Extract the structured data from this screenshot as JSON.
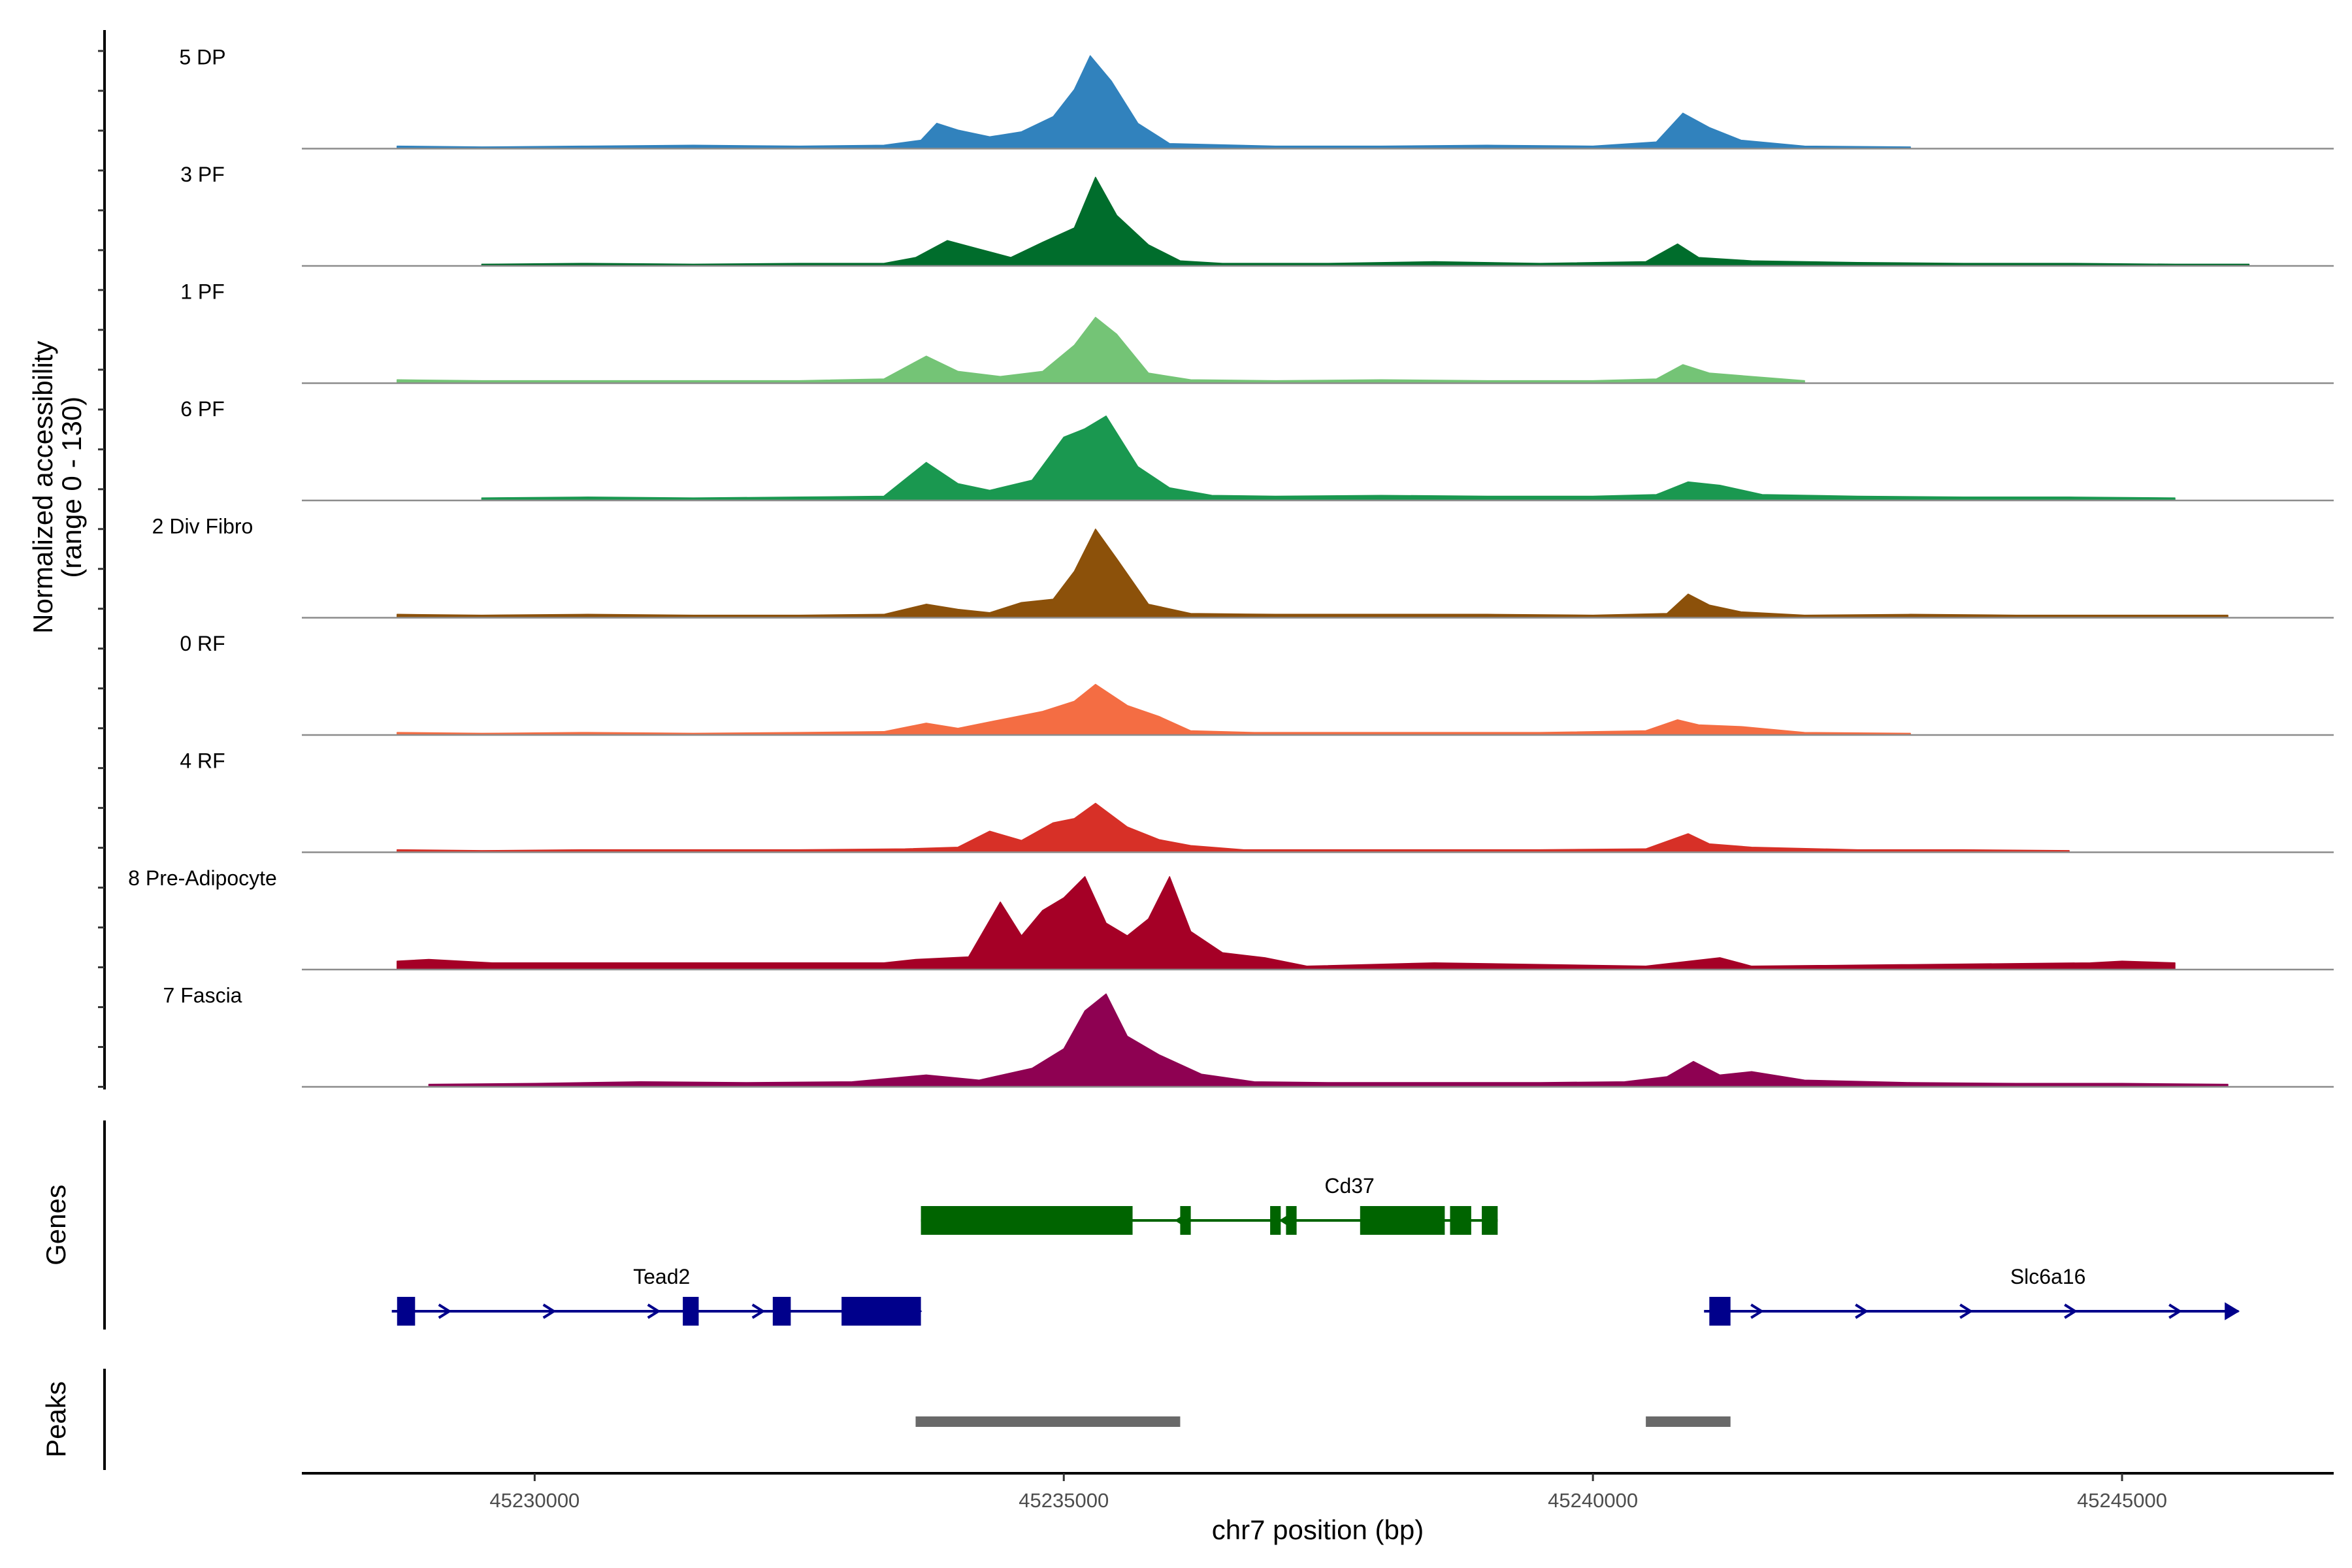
{
  "chart_data": {
    "type": "area",
    "title": "",
    "ylabel": "Normalized accessibility\n(range 0 - 130)",
    "ylabel_lines": [
      "Normalized accessibility",
      "(range 0 - 130)"
    ],
    "ylim": [
      0,
      130
    ],
    "xlabel": "chr7 position (bp)",
    "xlim": [
      45227800,
      45247000
    ],
    "x_ticks": [
      45230000,
      45235000,
      45240000,
      45245000
    ],
    "x_tick_labels": [
      "45230000",
      "45235000",
      "45240000",
      "45245000"
    ],
    "series": [
      {
        "name": "5 DP",
        "color": "#3182BD",
        "x": [
          45228700,
          45229500,
          45230500,
          45231500,
          45232500,
          45233300,
          45233650,
          45233800,
          45234000,
          45234300,
          45234600,
          45234900,
          45235100,
          45235250,
          45235450,
          45235700,
          45236000,
          45237000,
          45238000,
          45239000,
          45240000,
          45240600,
          45240850,
          45241100,
          45241400,
          45242000,
          45243000
        ],
        "values": [
          3,
          2,
          3,
          4,
          3,
          4,
          10,
          30,
          22,
          14,
          20,
          38,
          70,
          110,
          80,
          30,
          6,
          3,
          3,
          4,
          3,
          8,
          42,
          25,
          10,
          3,
          2
        ]
      },
      {
        "name": "3 PF",
        "color": "#006D2C",
        "x": [
          45229500,
          45230500,
          45231500,
          45232500,
          45233300,
          45233600,
          45233900,
          45234200,
          45234500,
          45234800,
          45235100,
          45235300,
          45235500,
          45235800,
          45236100,
          45236500,
          45237500,
          45238500,
          45239500,
          45240500,
          45240800,
          45241000,
          45241500,
          45242500,
          45243500,
          45244500,
          45245500,
          45246200
        ],
        "values": [
          2,
          3,
          2,
          3,
          3,
          10,
          30,
          20,
          10,
          28,
          45,
          105,
          60,
          25,
          6,
          3,
          3,
          5,
          3,
          5,
          26,
          10,
          6,
          4,
          3,
          3,
          2,
          2
        ]
      },
      {
        "name": "1 PF",
        "color": "#74C476",
        "x": [
          45228700,
          45229500,
          45230500,
          45231500,
          45232500,
          45233300,
          45233700,
          45234000,
          45234400,
          45234800,
          45235100,
          45235300,
          45235500,
          45235800,
          45236200,
          45237000,
          45238000,
          45239000,
          45240000,
          45240600,
          45240850,
          45241100,
          45241500,
          45242000
        ],
        "values": [
          4,
          3,
          3,
          3,
          3,
          5,
          32,
          14,
          8,
          14,
          45,
          78,
          58,
          12,
          4,
          3,
          4,
          3,
          3,
          5,
          22,
          12,
          8,
          3
        ]
      },
      {
        "name": "6 PF",
        "color": "#1A9850",
        "x": [
          45229500,
          45230500,
          45231500,
          45232500,
          45233300,
          45233700,
          45234000,
          45234300,
          45234700,
          45235000,
          45235200,
          45235400,
          45235700,
          45236000,
          45236400,
          45237000,
          45238000,
          45239000,
          45240000,
          45240600,
          45240900,
          45241200,
          45241600,
          45242500,
          45243500,
          45244500,
          45245500
        ],
        "values": [
          3,
          4,
          3,
          4,
          5,
          45,
          20,
          12,
          24,
          75,
          85,
          100,
          40,
          15,
          6,
          5,
          6,
          5,
          5,
          7,
          22,
          18,
          7,
          5,
          4,
          4,
          3
        ]
      },
      {
        "name": "2 Div Fibro",
        "color": "#8C510A",
        "x": [
          45228700,
          45229500,
          45230500,
          45231500,
          45232500,
          45233300,
          45233700,
          45234000,
          45234300,
          45234600,
          45234900,
          45235100,
          45235300,
          45235500,
          45235800,
          45236200,
          45237000,
          45238000,
          45239000,
          45240000,
          45240700,
          45240900,
          45241100,
          45241400,
          45242000,
          45243000,
          45244000,
          45245000,
          45246000
        ],
        "values": [
          4,
          3,
          4,
          3,
          3,
          4,
          16,
          10,
          6,
          18,
          22,
          55,
          105,
          70,
          16,
          5,
          4,
          4,
          4,
          3,
          5,
          28,
          15,
          7,
          3,
          4,
          3,
          3,
          3
        ]
      },
      {
        "name": "0 RF",
        "color": "#F46D43",
        "x": [
          45228700,
          45229500,
          45230500,
          45231500,
          45232500,
          45233300,
          45233700,
          45234000,
          45234400,
          45234800,
          45235100,
          45235300,
          45235600,
          45235900,
          45236200,
          45236800,
          45237500,
          45238500,
          45239500,
          45240500,
          45240800,
          45241000,
          45241400,
          45242000,
          45243000
        ],
        "values": [
          3,
          2,
          3,
          2,
          3,
          4,
          14,
          8,
          18,
          28,
          40,
          60,
          35,
          22,
          5,
          3,
          3,
          3,
          3,
          5,
          18,
          12,
          10,
          3,
          2
        ]
      },
      {
        "name": "4 RF",
        "color": "#D73027",
        "x": [
          45228700,
          45229500,
          45230500,
          45231500,
          45232500,
          45233500,
          45234000,
          45234300,
          45234600,
          45234900,
          45235100,
          45235300,
          45235600,
          45235900,
          45236200,
          45236700,
          45237500,
          45238500,
          45239500,
          45240500,
          45240900,
          45241100,
          45241500,
          45242500,
          45243500,
          45244500
        ],
        "values": [
          3,
          2,
          3,
          3,
          3,
          4,
          6,
          25,
          14,
          35,
          40,
          58,
          30,
          15,
          8,
          3,
          3,
          3,
          3,
          4,
          22,
          10,
          6,
          3,
          3,
          2
        ]
      },
      {
        "name": "8 Pre-Adipocyte",
        "color": "#A50026",
        "x": [
          45228700,
          45229000,
          45229300,
          45229600,
          45233300,
          45233600,
          45234100,
          45234400,
          45234600,
          45234800,
          45235000,
          45235200,
          45235400,
          45235600,
          45235800,
          45236000,
          45236200,
          45236500,
          45236900,
          45237300,
          45238500,
          45240500,
          45241200,
          45241500,
          45244700,
          45245000,
          45245500
        ],
        "values": [
          10,
          12,
          10,
          8,
          8,
          12,
          15,
          80,
          40,
          70,
          85,
          110,
          55,
          40,
          60,
          110,
          45,
          20,
          14,
          4,
          8,
          4,
          14,
          4,
          8,
          10,
          8
        ]
      },
      {
        "name": "7 Fascia",
        "color": "#8E0152",
        "x": [
          45229000,
          45230000,
          45231000,
          45232000,
          45233000,
          45233700,
          45234200,
          45234700,
          45235000,
          45235200,
          45235400,
          45235600,
          45235900,
          45236300,
          45236800,
          45237500,
          45238500,
          45239500,
          45240300,
          45240700,
          45240950,
          45241200,
          45241500,
          45242000,
          45243000,
          45244000,
          45245000,
          45246000
        ],
        "values": [
          3,
          4,
          6,
          5,
          6,
          14,
          8,
          22,
          45,
          90,
          110,
          60,
          38,
          15,
          6,
          5,
          5,
          5,
          6,
          12,
          30,
          14,
          18,
          8,
          5,
          4,
          4,
          3
        ]
      }
    ],
    "genes": [
      {
        "name": "Cd37",
        "strand": "-",
        "start": 45233650,
        "end": 45239100,
        "color": "#006400",
        "exons": [
          [
            45233650,
            45235650
          ],
          [
            45236100,
            45236200
          ],
          [
            45236950,
            45237050
          ],
          [
            45237100,
            45237200
          ],
          [
            45237800,
            45238600
          ],
          [
            45238650,
            45238850
          ],
          [
            45238950,
            45239100
          ]
        ]
      },
      {
        "name": "Tead2",
        "strand": "+",
        "start": 45228650,
        "end": 45233650,
        "color": "#00008B",
        "exons": [
          [
            45228700,
            45228870
          ],
          [
            45231400,
            45231550
          ],
          [
            45232250,
            45232420
          ],
          [
            45232900,
            45233650
          ]
        ]
      },
      {
        "name": "Slc6a16",
        "strand": "+",
        "start": 45241050,
        "end": 45246100,
        "color": "#00008B",
        "exons": [
          [
            45241100,
            45241300
          ]
        ]
      }
    ],
    "peaks": [
      [
        45233600,
        45236100
      ],
      [
        45240500,
        45241300
      ]
    ],
    "panel_titles": {
      "genes": "Genes",
      "peaks": "Peaks"
    },
    "peak_color": "#696969",
    "baseline_color": "#8C8C8C"
  }
}
